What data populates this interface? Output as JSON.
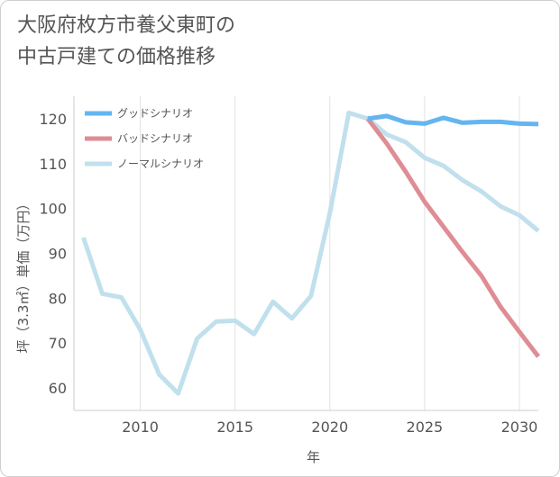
{
  "title": {
    "line1": "大阪府枚方市養父東町の",
    "line2": "中古戸建ての価格推移"
  },
  "chart_data": {
    "type": "line",
    "title": "大阪府枚方市養父東町の中古戸建ての価格推移",
    "xlabel": "年",
    "ylabel": "坪（3.3㎡）単価（万円）",
    "xlim": [
      2006.5,
      2031
    ],
    "ylim": [
      55,
      125
    ],
    "xticks": [
      2010,
      2015,
      2020,
      2025,
      2030
    ],
    "yticks": [
      60,
      70,
      80,
      90,
      100,
      110,
      120
    ],
    "grid": "vertical",
    "legend_position": "top-left",
    "series": [
      {
        "name": "グッドシナリオ",
        "color": "#64b5f0",
        "x": [
          2022,
          2023,
          2024,
          2025,
          2026,
          2027,
          2028,
          2029,
          2030,
          2031
        ],
        "y": [
          120.0,
          120.6,
          119.2,
          118.9,
          120.2,
          119.1,
          119.3,
          119.3,
          118.9,
          118.8
        ]
      },
      {
        "name": "バッドシナリオ",
        "color": "#df8d95",
        "x": [
          2022,
          2023,
          2024,
          2025,
          2026,
          2027,
          2028,
          2029,
          2030,
          2031
        ],
        "y": [
          120.0,
          114.5,
          108.2,
          101.5,
          95.9,
          90.3,
          85.0,
          78.1,
          72.5,
          67.0
        ]
      },
      {
        "name": "ノーマルシナリオ",
        "color": "#c1e0ed",
        "x": [
          2007,
          2008,
          2009,
          2010,
          2011,
          2012,
          2013,
          2014,
          2015,
          2016,
          2017,
          2018,
          2019,
          2020,
          2021,
          2022,
          2023,
          2024,
          2025,
          2026,
          2027,
          2028,
          2029,
          2030,
          2031
        ],
        "y": [
          93.5,
          81.0,
          80.2,
          73.0,
          63.0,
          58.8,
          71.0,
          74.8,
          75.0,
          72.0,
          79.2,
          75.5,
          80.5,
          99.0,
          121.3,
          120.0,
          116.5,
          114.8,
          111.3,
          109.5,
          106.3,
          103.8,
          100.5,
          98.5,
          95.0
        ]
      }
    ]
  }
}
